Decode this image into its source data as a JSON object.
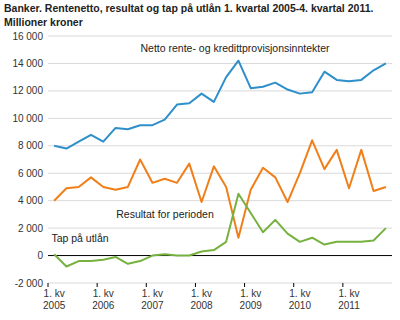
{
  "chart_data": {
    "type": "line",
    "title": "Banker. Rentenetto, resultat og tap på utlån 1. kvartal 2005-4. kvartal 2011.",
    "y_label": "Millioner kroner",
    "categories": [
      "1. kv\n2005",
      null,
      null,
      null,
      "1. kv\n2006",
      null,
      null,
      null,
      "1. kv\n2007",
      null,
      null,
      null,
      "1. kv\n2008",
      null,
      null,
      null,
      "1. kv\n2009",
      null,
      null,
      null,
      "1. kv\n2010",
      null,
      null,
      null,
      "1. kv\n2011",
      null,
      null,
      null
    ],
    "series": [
      {
        "name": "Netto rente- og kredittprovisjonsinntekter",
        "color": "#2e8fcb",
        "values": [
          8000,
          7800,
          8300,
          8800,
          8300,
          9300,
          9200,
          9500,
          9500,
          9900,
          11000,
          11100,
          11800,
          11200,
          13000,
          14200,
          12200,
          12300,
          12600,
          12100,
          11800,
          11900,
          13400,
          12800,
          12700,
          12800,
          13500,
          14000
        ]
      },
      {
        "name": "Resultat for perioden",
        "color": "#f07f19",
        "values": [
          4000,
          4900,
          5000,
          5700,
          5000,
          4800,
          5000,
          7000,
          5300,
          5600,
          5300,
          6700,
          3900,
          6500,
          5000,
          1300,
          4800,
          6400,
          5700,
          3900,
          6000,
          8400,
          6300,
          7700,
          4900,
          7700,
          4700,
          5000
        ]
      },
      {
        "name": "Tap på utlån",
        "color": "#77b241",
        "values": [
          100,
          -800,
          -400,
          -400,
          -300,
          -100,
          -600,
          -400,
          0,
          100,
          0,
          0,
          300,
          400,
          1000,
          4500,
          3100,
          1700,
          2600,
          1600,
          1000,
          1300,
          800,
          1000,
          1000,
          1000,
          1100,
          2000
        ]
      }
    ],
    "ylim": [
      -2000,
      16000
    ],
    "yticks": [
      {
        "value": -2000,
        "label": "-2 000"
      },
      0,
      {
        "value": 2000,
        "label": "2 000"
      },
      {
        "value": 4000,
        "label": "4 000"
      },
      {
        "value": 6000,
        "label": "6 000"
      },
      {
        "value": 8000,
        "label": "8 000"
      },
      {
        "value": 10000,
        "label": "10 000"
      },
      {
        "value": 12000,
        "label": "12 000"
      },
      {
        "value": 14000,
        "label": "14 000"
      },
      {
        "value": 16000,
        "label": "16 000"
      }
    ],
    "grid": true
  }
}
